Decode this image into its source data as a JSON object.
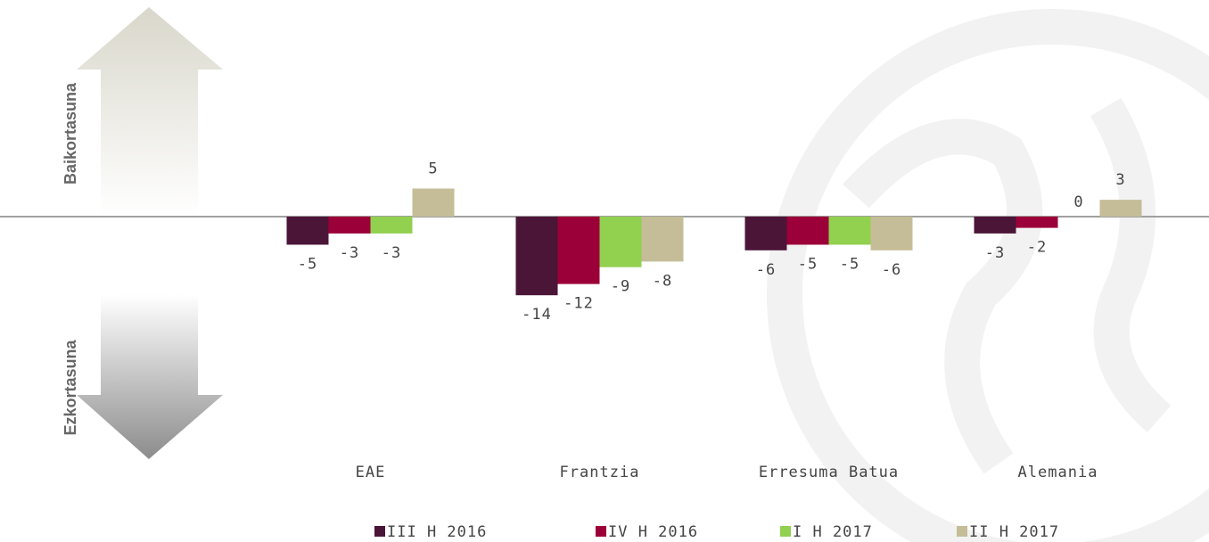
{
  "chart_data": {
    "type": "bar",
    "y_labels": {
      "positive": "Baikortasuna",
      "negative": "Ezkortasuna"
    },
    "categories": [
      "EAE",
      "Frantzia",
      "Erresuma Batua",
      "Alemania"
    ],
    "series": [
      {
        "name": "III H 2016",
        "color": "#4b1538",
        "values": [
          -5,
          -14,
          -6,
          -3
        ]
      },
      {
        "name": "IV H 2016",
        "color": "#9b0038",
        "values": [
          -3,
          -12,
          -5,
          -2
        ]
      },
      {
        "name": "I H 2017",
        "color": "#92d050",
        "values": [
          -3,
          -9,
          -5,
          0
        ]
      },
      {
        "name": "II H 2017",
        "color": "#c4bd97",
        "values": [
          5,
          -8,
          -6,
          3
        ]
      }
    ],
    "ylim": [
      -20,
      20
    ]
  }
}
